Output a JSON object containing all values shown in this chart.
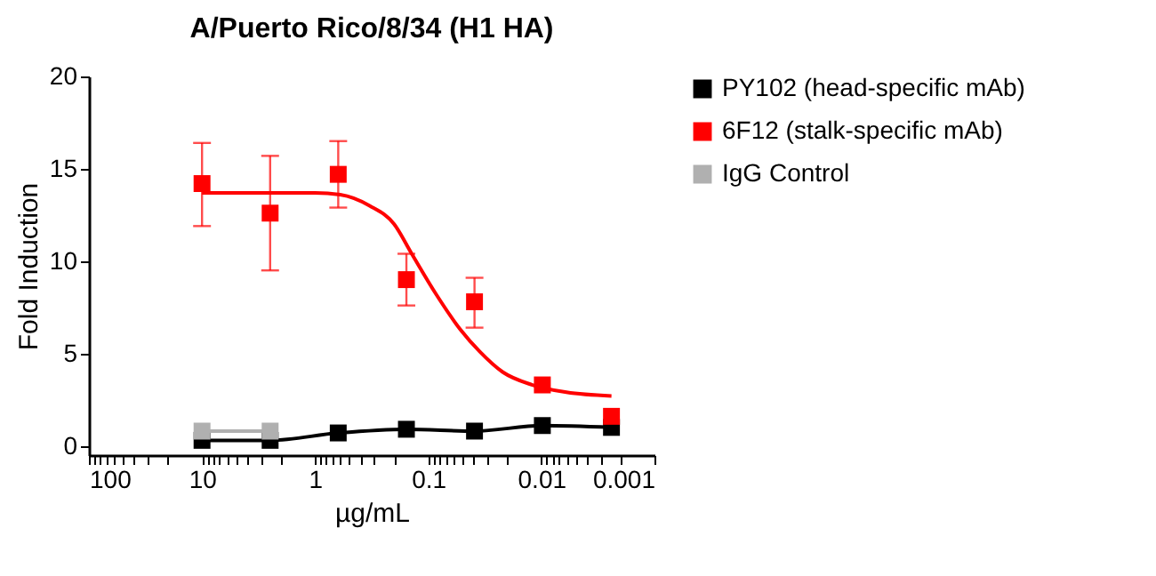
{
  "chart_data": {
    "type": "line",
    "title": "A/Puerto Rico/8/34 (H1 HA)",
    "xlabel": "µg/mL",
    "ylabel": "Fold Induction",
    "log": "x",
    "xlim": [
      100,
      0.001
    ],
    "ylim": [
      -0.5,
      20
    ],
    "xticks": [
      100,
      {
        "value": 90,
        "label": null
      },
      {
        "value": 80,
        "label": null
      },
      {
        "value": 70,
        "label": null
      },
      {
        "value": 60,
        "label": null
      },
      {
        "value": 50,
        "label": null
      },
      {
        "value": 40,
        "label": null
      },
      {
        "value": 30,
        "label": null
      },
      {
        "value": 20,
        "label": null
      },
      10,
      {
        "value": 9,
        "label": null
      },
      {
        "value": 8,
        "label": null
      },
      {
        "value": 7,
        "label": null
      },
      {
        "value": 6,
        "label": null
      },
      {
        "value": 5,
        "label": null
      },
      {
        "value": 4,
        "label": null
      },
      {
        "value": 3,
        "label": null
      },
      {
        "value": 2,
        "label": null
      },
      1,
      {
        "value": 0.9,
        "label": null
      },
      {
        "value": 0.8,
        "label": null
      },
      {
        "value": 0.7,
        "label": null
      },
      {
        "value": 0.6,
        "label": null
      },
      {
        "value": 0.5,
        "label": null
      },
      {
        "value": 0.4,
        "label": null
      },
      {
        "value": 0.3,
        "label": null
      },
      {
        "value": 0.2,
        "label": null
      },
      0.1,
      {
        "value": 0.09,
        "label": null
      },
      {
        "value": 0.08,
        "label": null
      },
      {
        "value": 0.07,
        "label": null
      },
      {
        "value": 0.06,
        "label": null
      },
      {
        "value": 0.05,
        "label": null
      },
      {
        "value": 0.04,
        "label": null
      },
      {
        "value": 0.03,
        "label": null
      },
      {
        "value": 0.02,
        "label": null
      },
      0.01,
      {
        "value": 0.009,
        "label": null
      },
      {
        "value": 0.008,
        "label": null
      },
      {
        "value": 0.007,
        "label": null
      },
      {
        "value": 0.006,
        "label": null
      },
      {
        "value": 0.005,
        "label": null
      },
      {
        "value": 0.004,
        "label": null
      },
      {
        "value": 0.003,
        "label": null
      },
      {
        "value": 0.002,
        "label": null
      },
      0.001
    ],
    "yticks": [
      0,
      5,
      10,
      15,
      20
    ],
    "grid": false,
    "legend": "top right",
    "marker": "square",
    "series": [
      {
        "type": "line",
        "color": "#ff0000",
        "marker": "none",
        "x": [
          10,
          1,
          0.6,
          0.33,
          0.2,
          0.14,
          0.085,
          0.052,
          0.035,
          0.022,
          0.012,
          0.006,
          0.0024
        ],
        "values": [
          13.7,
          13.7,
          13.6,
          13.0,
          12.0,
          10.4,
          8.2,
          6.3,
          5.1,
          4.0,
          3.3,
          2.9,
          2.7
        ]
      },
      {
        "name": "PY102 (head-specific mAb)",
        "color": "#000000",
        "marker": "square",
        "x": [
          10,
          2.5,
          0.625,
          0.156,
          0.039,
          0.0098,
          0.0024
        ],
        "values": [
          0.3,
          0.3,
          0.7,
          0.9,
          0.8,
          1.1,
          1.0
        ]
      },
      {
        "name": "6F12 (stalk-specific mAb)",
        "type": "scatter",
        "color": "#ff0000",
        "marker": "square",
        "x": [
          10,
          2.5,
          0.625,
          0.156,
          0.039,
          0.0098,
          0.0024
        ],
        "values": [
          14.2,
          12.6,
          14.7,
          9.0,
          7.8,
          3.3,
          1.6
        ],
        "errors": [
          [
            11.9,
            16.4
          ],
          [
            9.5,
            15.7
          ],
          [
            12.9,
            16.5
          ],
          [
            7.6,
            10.4
          ],
          [
            6.4,
            9.1
          ],
          null,
          null
        ]
      },
      {
        "name": "IgG Control",
        "color": "#b0b0b0",
        "marker": "square",
        "x": [
          10,
          2.5
        ],
        "values": [
          0.8,
          0.8
        ]
      }
    ]
  }
}
